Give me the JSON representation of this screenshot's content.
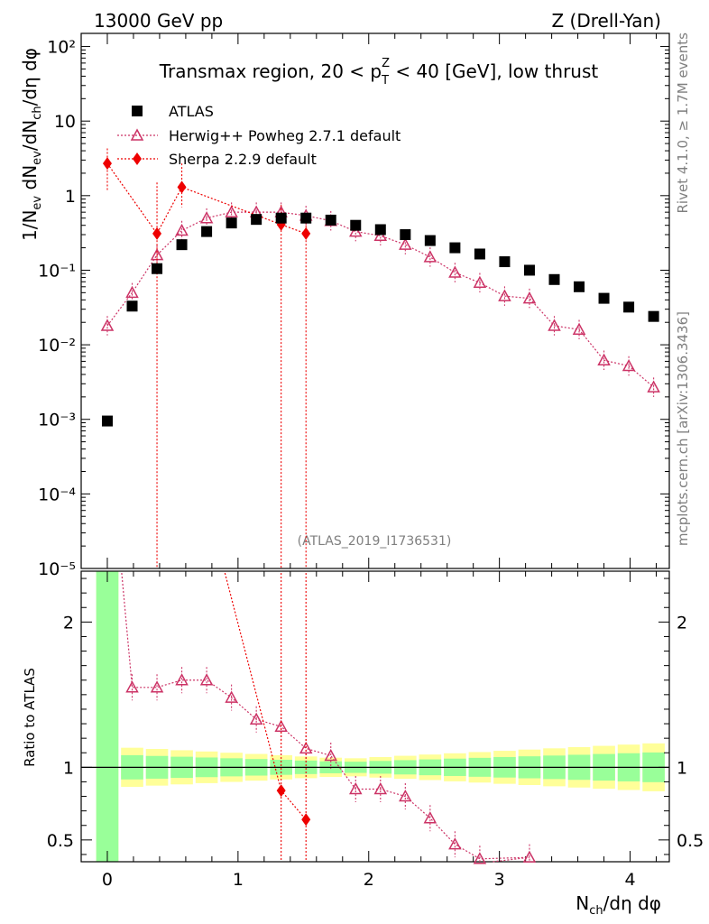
{
  "header": {
    "left": "13000 GeV pp",
    "right": "Z (Drell-Yan)"
  },
  "side": {
    "rivet": "Rivet 4.1.0, ≥ 1.7M events",
    "mcplots": "mcplots.cern.ch [arXiv:1306.3436]"
  },
  "chart_data": [
    {
      "type": "scatter",
      "title": "Transmax region, 20 < pTZ < 40 [GeV], low thrust",
      "title_parts": {
        "pre": "Transmax region, 20 < p",
        "sup": "Z",
        "sub": "T",
        "post": " < 40 [GeV], low thrust"
      },
      "ylabel": "1/Nev dNev/dNch/dη dφ",
      "ylabel_parts": [
        "1/N",
        "ev",
        " dN",
        "ev",
        "/dN",
        "ch",
        "/dη dφ"
      ],
      "yscale": "log",
      "ylim": [
        1e-05,
        150
      ],
      "xlim": [
        -0.2,
        4.3
      ],
      "x_ticks": [
        0,
        1,
        2,
        3,
        4
      ],
      "y_tick_labels": [
        "10⁻⁵",
        "10⁻⁴",
        "10⁻³",
        "10⁻²",
        "10⁻¹",
        "1",
        "10",
        "10²"
      ],
      "watermark": "(ATLAS_2019_I1736531)",
      "legend": [
        "ATLAS",
        "Herwig++ Powheg 2.7.1 default",
        "Sherpa 2.2.9 default"
      ],
      "series": [
        {
          "name": "ATLAS",
          "x": [
            0,
            0.19,
            0.38,
            0.57,
            0.76,
            0.95,
            1.14,
            1.33,
            1.52,
            1.71,
            1.9,
            2.09,
            2.28,
            2.47,
            2.66,
            2.85,
            3.04,
            3.23,
            3.42,
            3.61,
            3.8,
            3.99,
            4.18
          ],
          "values": [
            0.00095,
            0.033,
            0.105,
            0.22,
            0.33,
            0.43,
            0.48,
            0.5,
            0.5,
            0.47,
            0.4,
            0.35,
            0.3,
            0.25,
            0.2,
            0.165,
            0.13,
            0.1,
            0.075,
            0.06,
            0.042,
            0.032,
            0.024
          ]
        },
        {
          "name": "Herwig++ Powheg 2.7.1 default",
          "x": [
            0,
            0.19,
            0.38,
            0.57,
            0.76,
            0.95,
            1.14,
            1.33,
            1.52,
            1.71,
            1.9,
            2.09,
            2.28,
            2.47,
            2.66,
            2.85,
            3.04,
            3.23,
            3.42,
            3.61,
            3.8,
            3.99,
            4.18
          ],
          "values": [
            0.018,
            0.05,
            0.16,
            0.34,
            0.5,
            0.6,
            0.6,
            0.6,
            0.54,
            0.46,
            0.33,
            0.29,
            0.22,
            0.15,
            0.093,
            0.068,
            0.045,
            0.042,
            0.018,
            0.016,
            0.0062,
            0.0052,
            0.0027
          ]
        },
        {
          "name": "Sherpa 2.2.9 default",
          "x": [
            0,
            0.38,
            0.57,
            1.33,
            1.52
          ],
          "values": [
            2.7,
            0.31,
            1.3,
            0.41,
            0.31
          ]
        }
      ]
    },
    {
      "type": "scatter",
      "title": "",
      "ylabel": "Ratio to ATLAS",
      "xlabel": "Nch/dη dφ",
      "xlabel_parts": [
        "N",
        "ch",
        "/dη dφ"
      ],
      "ylim": [
        0.35,
        2.35
      ],
      "xlim": [
        -0.2,
        4.3
      ],
      "x_ticks": [
        0,
        1,
        2,
        3,
        4
      ],
      "y_ticks": [
        0.5,
        1,
        2
      ],
      "y_tick_labels": [
        "0.5",
        "1",
        "2"
      ],
      "series": [
        {
          "name": "Herwig++ Powheg 2.7.1 default",
          "x": [
            0.19,
            0.38,
            0.57,
            0.76,
            0.95,
            1.14,
            1.33,
            1.52,
            1.71,
            1.9,
            2.09,
            2.28,
            2.47,
            2.66,
            2.85,
            3.23
          ],
          "values": [
            1.55,
            1.55,
            1.6,
            1.6,
            1.48,
            1.33,
            1.28,
            1.13,
            1.08,
            0.85,
            0.85,
            0.8,
            0.65,
            0.47,
            0.37,
            0.38
          ]
        },
        {
          "name": "Sherpa 2.2.9 default",
          "x": [
            1.33,
            1.52
          ],
          "values": [
            0.84,
            0.64
          ]
        }
      ]
    }
  ],
  "colors": {
    "atlas": "#000000",
    "herwig": "#cc3366",
    "sherpa": "#ee0000",
    "band_stat": "#99ff99",
    "band_syst": "#ffff99"
  }
}
